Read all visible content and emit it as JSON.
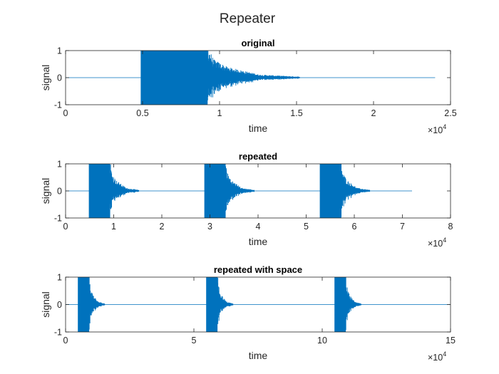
{
  "figure": {
    "title": "Repeater"
  },
  "colors": {
    "signal": "#0072BD",
    "axis": "#262626",
    "background": "#ffffff"
  },
  "chart_data": [
    {
      "type": "line",
      "title": "original",
      "xlabel": "time",
      "ylabel": "signal",
      "xlim": [
        0,
        25000
      ],
      "ylim": [
        -1,
        1
      ],
      "xticks": [
        0,
        5000,
        10000,
        15000,
        20000,
        25000
      ],
      "xtick_labels": [
        "0",
        "0.5",
        "1",
        "1.5",
        "2",
        "2.5"
      ],
      "yticks": [
        -1,
        0,
        1
      ],
      "ytick_labels": [
        "-1",
        "0",
        "1"
      ],
      "x_exponent_base": "×10",
      "x_exponent": "4",
      "grid": false,
      "series": [
        {
          "signal_extent": [
            0,
            24000
          ],
          "bursts": [
            {
              "start": 4900,
              "end": 15200
            }
          ],
          "envelope": [
            [
              0,
              1
            ],
            [
              4300,
              1
            ],
            [
              4700,
              0.55
            ],
            [
              5600,
              0.32
            ],
            [
              7700,
              0.09
            ],
            [
              10300,
              0.03
            ]
          ]
        }
      ]
    },
    {
      "type": "line",
      "title": "repeated",
      "xlabel": "time",
      "ylabel": "signal",
      "xlim": [
        0,
        80000
      ],
      "ylim": [
        -1,
        1
      ],
      "xticks": [
        0,
        10000,
        20000,
        30000,
        40000,
        50000,
        60000,
        70000,
        80000
      ],
      "xtick_labels": [
        "0",
        "1",
        "2",
        "3",
        "4",
        "5",
        "6",
        "7",
        "8"
      ],
      "yticks": [
        -1,
        0,
        1
      ],
      "ytick_labels": [
        "-1",
        "0",
        "1"
      ],
      "x_exponent_base": "×10",
      "x_exponent": "4",
      "grid": false,
      "series": [
        {
          "signal_extent": [
            0,
            72000
          ],
          "bursts": [
            {
              "start": 4900,
              "end": 15200
            },
            {
              "start": 28900,
              "end": 39200
            },
            {
              "start": 52900,
              "end": 63200
            }
          ],
          "envelope": [
            [
              0,
              1
            ],
            [
              4300,
              1
            ],
            [
              4700,
              0.55
            ],
            [
              5600,
              0.32
            ],
            [
              7700,
              0.09
            ],
            [
              10300,
              0.03
            ]
          ]
        }
      ]
    },
    {
      "type": "line",
      "title": "repeated with space",
      "xlabel": "time",
      "ylabel": "signal",
      "xlim": [
        0,
        150000
      ],
      "ylim": [
        -1,
        1
      ],
      "xticks": [
        0,
        50000,
        100000,
        150000
      ],
      "xtick_labels": [
        "0",
        "5",
        "10",
        "15"
      ],
      "yticks": [
        -1,
        0,
        1
      ],
      "ytick_labels": [
        "-1",
        "0",
        "1"
      ],
      "x_exponent_base": "×10",
      "x_exponent": "4",
      "grid": false,
      "series": [
        {
          "signal_extent": [
            0,
            150000
          ],
          "bursts": [
            {
              "start": 4900,
              "end": 15200
            },
            {
              "start": 54900,
              "end": 65200
            },
            {
              "start": 104900,
              "end": 115200
            }
          ],
          "envelope": [
            [
              0,
              1
            ],
            [
              4300,
              1
            ],
            [
              4700,
              0.55
            ],
            [
              5600,
              0.32
            ],
            [
              7700,
              0.09
            ],
            [
              10300,
              0.03
            ]
          ]
        }
      ]
    }
  ]
}
